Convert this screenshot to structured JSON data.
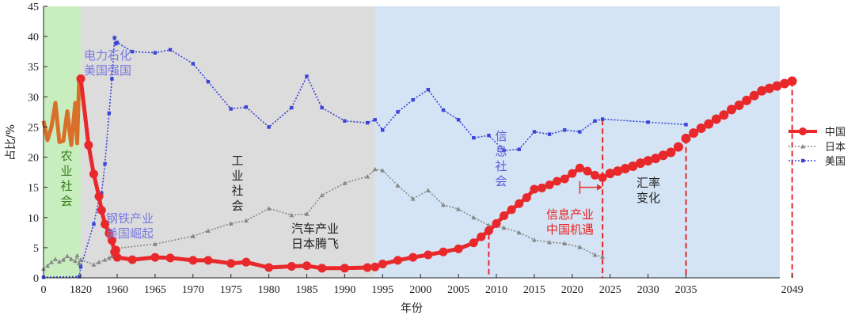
{
  "chart_data": {
    "type": "line",
    "xlabel": "年份",
    "ylabel": "占比/%",
    "ylim": [
      0,
      45
    ],
    "grid": false,
    "legend_position": "right",
    "y_ticks": [
      "0",
      "5",
      "10",
      "15",
      "20",
      "25",
      "30",
      "35",
      "40",
      "45"
    ],
    "x_ticks": [
      "0",
      "1820",
      "1960",
      "1965",
      "1970",
      "1975",
      "1980",
      "1985",
      "1990",
      "1995",
      "2000",
      "2005",
      "2010",
      "2015",
      "2020",
      "2025",
      "2030",
      "2035",
      "2049"
    ],
    "eras": [
      {
        "lines": [
          "农",
          "业",
          "社",
          "会"
        ],
        "color": "#3a7d1c",
        "fill": "#c8eec0"
      },
      {
        "lines": [
          "工",
          "业",
          "社",
          "会"
        ],
        "color": "#222222",
        "fill": "#dcdcdc"
      },
      {
        "lines": [
          "信",
          "息",
          "社",
          "会"
        ],
        "color": "#5a5ad8",
        "fill": "#d4e4f4"
      }
    ],
    "annotations": [
      {
        "lines": [
          "电力石化",
          "美国强国"
        ],
        "color": "#7a7ae0"
      },
      {
        "lines": [
          "钢铁产业",
          "美国崛起"
        ],
        "color": "#7a7ae0"
      },
      {
        "lines": [
          "汽车产业",
          "日本腾飞"
        ],
        "color": "#222222"
      },
      {
        "lines": [
          "信息产业",
          "中国机遇"
        ],
        "color": "#e82020"
      },
      {
        "lines": [
          "汇率",
          "变化"
        ],
        "color": "#222222"
      }
    ],
    "series": [
      {
        "name": "中国",
        "color": "#e8282a",
        "x": [
          "0",
          "200",
          "400",
          "600",
          "800",
          "1000",
          "1200",
          "1400",
          "1600",
          "1700",
          "1800",
          "1820",
          "1850",
          "1870",
          "1890",
          "1900",
          "1913",
          "1929",
          "1940",
          "1950",
          "1955",
          "1960",
          "1962",
          "1965",
          "1967",
          "1970",
          "1972",
          "1975",
          "1977",
          "1980",
          "1983",
          "1985",
          "1987",
          "1990",
          "1993",
          "1994",
          "1995",
          "1997",
          "1999",
          "2001",
          "2003",
          "2005",
          "2007",
          "2008",
          "2009",
          "2010",
          "2011",
          "2012",
          "2013",
          "2014",
          "2015",
          "2016",
          "2017",
          "2018",
          "2019",
          "2020",
          "2021",
          "2022",
          "2023",
          "2024",
          "2025",
          "2026",
          "2027",
          "2028",
          "2029",
          "2030",
          "2031",
          "2032",
          "2033",
          "2034",
          "2035",
          "2036",
          "2037",
          "2038",
          "2039",
          "2040",
          "2041",
          "2042",
          "2043",
          "2044",
          "2045",
          "2046",
          "2047",
          "2048",
          "2049"
        ],
        "y": [
          26,
          22.8,
          25,
          29,
          22.5,
          22.7,
          27.6,
          22,
          29,
          22.3,
          33,
          33,
          22,
          17.2,
          13.5,
          11.2,
          8.9,
          7.4,
          6.2,
          4.3,
          4.6,
          3.4,
          3.0,
          3.4,
          3.3,
          2.9,
          2.9,
          2.4,
          2.6,
          1.7,
          1.9,
          2.0,
          1.6,
          1.6,
          1.7,
          1.8,
          2.3,
          2.9,
          3.4,
          3.8,
          4.3,
          4.8,
          5.8,
          6.8,
          7.8,
          9.0,
          10.3,
          11.3,
          12.3,
          13.3,
          14.7,
          14.9,
          15.4,
          16.0,
          16.4,
          17.3,
          18.2,
          17.7,
          17.0,
          16.6,
          17.3,
          17.7,
          18.1,
          18.5,
          19.0,
          19.4,
          19.8,
          20.3,
          20.8,
          21.7,
          23.1,
          24.0,
          24.8,
          25.5,
          26.3,
          27.0,
          27.9,
          28.6,
          29.4,
          30.2,
          31.0,
          31.4,
          31.8,
          32.2,
          32.6
        ]
      },
      {
        "name": "日本",
        "color": "#888888",
        "x": [
          "0",
          "200",
          "400",
          "600",
          "800",
          "1000",
          "1200",
          "1400",
          "1600",
          "1700",
          "1800",
          "1820",
          "1870",
          "1890",
          "1913",
          "1929",
          "1940",
          "1950",
          "1955",
          "1960",
          "1965",
          "1970",
          "1972",
          "1975",
          "1977",
          "1980",
          "1983",
          "1985",
          "1987",
          "1990",
          "1993",
          "1994",
          "1995",
          "1997",
          "1999",
          "2001",
          "2003",
          "2005",
          "2007",
          "2009",
          "2011",
          "2013",
          "2015",
          "2017",
          "2019",
          "2021",
          "2023",
          "2024"
        ],
        "y": [
          1.5,
          2.0,
          2.6,
          3.1,
          2.7,
          3.0,
          3.6,
          3.1,
          2.8,
          3.7,
          2.4,
          3.0,
          2.2,
          2.6,
          3.0,
          3.3,
          3.6,
          4.0,
          4.4,
          4.9,
          5.6,
          6.9,
          7.8,
          9.0,
          9.5,
          11.5,
          10.4,
          10.6,
          13.7,
          15.7,
          16.8,
          18.0,
          17.8,
          15.3,
          13.1,
          14.5,
          12.1,
          11.4,
          10.0,
          8.7,
          8.3,
          7.5,
          6.3,
          5.9,
          5.7,
          5.1,
          3.8,
          3.5
        ]
      },
      {
        "name": "美国",
        "color": "#3a45d8",
        "x": [
          "0",
          "1800",
          "1820",
          "1870",
          "1890",
          "1900",
          "1913",
          "1929",
          "1940",
          "1950",
          "1955",
          "1960",
          "1962",
          "1965",
          "1967",
          "1970",
          "1972",
          "1975",
          "1977",
          "1980",
          "1983",
          "1985",
          "1987",
          "1990",
          "1993",
          "1994",
          "1995",
          "1997",
          "1999",
          "2001",
          "2003",
          "2005",
          "2007",
          "2009",
          "2011",
          "2013",
          "2015",
          "2017",
          "2019",
          "2021",
          "2023",
          "2024",
          "2030",
          "2035"
        ],
        "y": [
          0.1,
          0.2,
          1.8,
          8.9,
          13.0,
          14.0,
          18.9,
          27.3,
          33.0,
          39.8,
          38.8,
          39.0,
          37.5,
          37.3,
          37.8,
          35.5,
          32.5,
          28.0,
          28.3,
          25.0,
          28.2,
          33.4,
          28.2,
          26.0,
          25.7,
          26.2,
          24.5,
          27.5,
          29.5,
          31.2,
          27.8,
          26.2,
          23.2,
          23.6,
          21.1,
          21.3,
          24.2,
          23.8,
          24.5,
          24.2,
          26.0,
          26.3,
          25.8,
          25.4
        ]
      }
    ]
  }
}
